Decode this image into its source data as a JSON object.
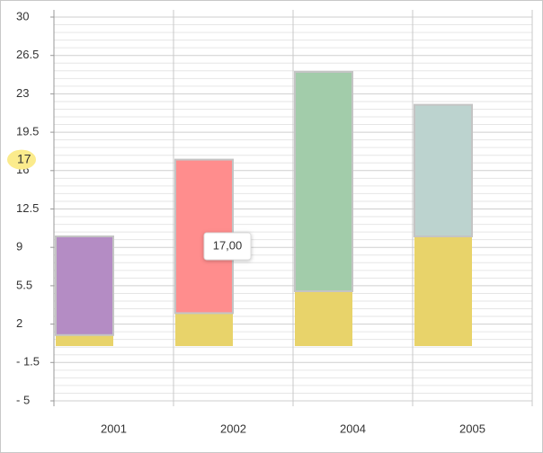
{
  "chart_data": {
    "type": "floating-bar",
    "categories": [
      "2001",
      "2002",
      "2004",
      "2005"
    ],
    "base_values": [
      1,
      3,
      5,
      10
    ],
    "base_color": "#e8d36a",
    "range_low": [
      1,
      3,
      5,
      10
    ],
    "range_high": [
      10,
      17,
      25,
      22
    ],
    "range_colors": [
      "#b48cc4",
      "#ff8d8d",
      "#a2ccaa",
      "#bcd3cf"
    ],
    "ylim": [
      -5,
      30
    ],
    "yticks": [
      {
        "value": -5,
        "label": "- 5"
      },
      {
        "value": -1.5,
        "label": "- 1.5"
      },
      2,
      5.5,
      9,
      12.5,
      16,
      19.5,
      23,
      26.5,
      30
    ],
    "grid": true,
    "hover": {
      "value": 17,
      "label": "17,00"
    }
  }
}
